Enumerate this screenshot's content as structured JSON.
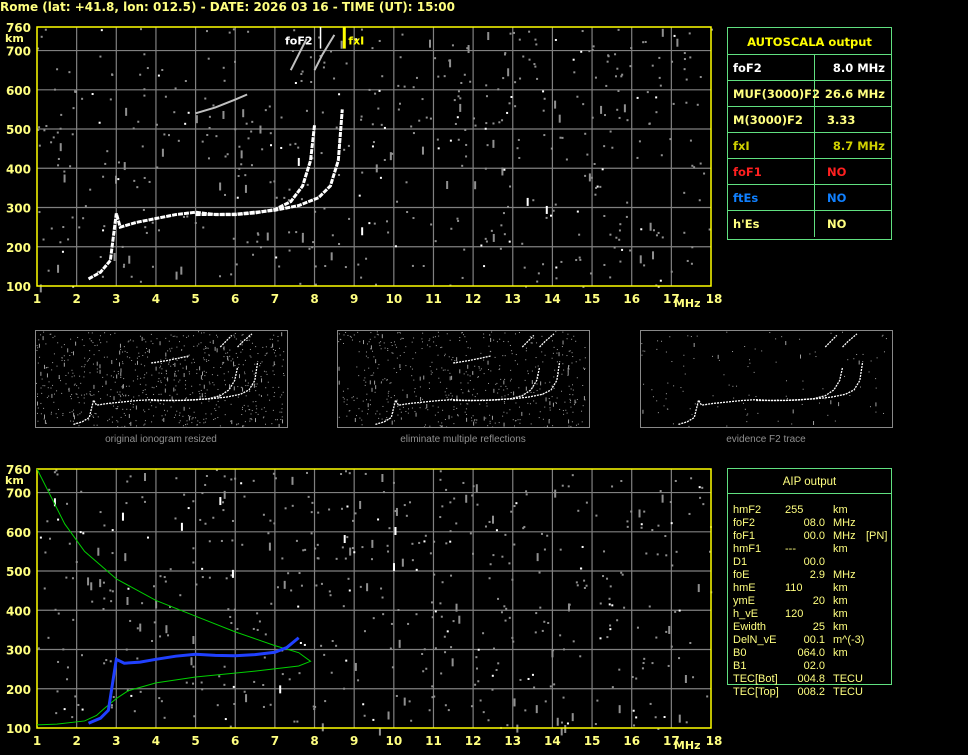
{
  "title": "Rome (lat: +41.8, lon: 012.5) - DATE: 2026 03 16 - TIME (UT): 15:00",
  "colors": {
    "axis": "#ffff00",
    "grid": "#808080",
    "table_border": "#60e080",
    "label": "#ffff80",
    "trace": "#ffffff",
    "profile": "#00d000",
    "aip_trace": "#2040ff",
    "fof1": "#ff2020",
    "ftes": "#1080ff",
    "fxl": "#d0d000"
  },
  "autoscala": {
    "header": "AUTOSCALA output",
    "rows": [
      {
        "label": "foF2",
        "value": "8.0 MHz",
        "color": "#ffffff"
      },
      {
        "label": "MUF(3000)F2",
        "value": "26.6 MHz",
        "color": "#ffff80"
      },
      {
        "label": "M(3000)F2",
        "value": "3.33",
        "color": "#ffff80"
      },
      {
        "label": "fxI",
        "value": "8.7 MHz",
        "color": "#d0d000"
      },
      {
        "label": "foF1",
        "value": "NO",
        "color": "#ff2020"
      },
      {
        "label": "ftEs",
        "value": "NO",
        "color": "#1080ff"
      },
      {
        "label": "h'Es",
        "value": "NO",
        "color": "#ffff80"
      }
    ]
  },
  "aip": {
    "header": "AIP output",
    "rows": [
      {
        "name": "hmF2",
        "value": "255",
        "unit": "km",
        "extra": ""
      },
      {
        "name": "foF2",
        "value": "08.0",
        "unit": "MHz",
        "extra": ""
      },
      {
        "name": "foF1",
        "value": "00.0",
        "unit": "MHz",
        "extra": "[PN]"
      },
      {
        "name": "hmF1",
        "value": "---",
        "unit": "km",
        "extra": ""
      },
      {
        "name": "D1",
        "value": "00.0",
        "unit": "",
        "extra": ""
      },
      {
        "name": "foE",
        "value": "2.9",
        "unit": "MHz",
        "extra": ""
      },
      {
        "name": "hmE",
        "value": "110",
        "unit": "km",
        "extra": ""
      },
      {
        "name": "ymE",
        "value": "20",
        "unit": "km",
        "extra": ""
      },
      {
        "name": "h_vE",
        "value": "120",
        "unit": "km",
        "extra": ""
      },
      {
        "name": "Ewidth",
        "value": "25",
        "unit": "km",
        "extra": ""
      },
      {
        "name": "DelN_vE",
        "value": "00.1",
        "unit": "m^(-3)",
        "extra": ""
      },
      {
        "name": "B0",
        "value": "064.0",
        "unit": "km",
        "extra": ""
      },
      {
        "name": "B1",
        "value": "02.0",
        "unit": "",
        "extra": ""
      },
      {
        "name": "TEC[Bot]",
        "value": "004.8",
        "unit": "TECU",
        "extra": ""
      },
      {
        "name": "TEC[Top]",
        "value": "008.2",
        "unit": "TECU",
        "extra": ""
      }
    ]
  },
  "thumbnails": [
    {
      "caption": "original ionogram resized"
    },
    {
      "caption": "eliminate multiple reflections"
    },
    {
      "caption": "evidence F2 trace"
    }
  ],
  "chart_data": [
    {
      "type": "scatter",
      "xlabel": "MHz",
      "ylabel": "km",
      "xlim": [
        1,
        18
      ],
      "ylim": [
        100,
        760
      ],
      "xticks": [
        "1",
        "2",
        "3",
        "4",
        "5",
        "6",
        "7",
        "8",
        "9",
        "10",
        "11",
        "12",
        "13",
        "14",
        "15",
        "16",
        "17",
        "18"
      ],
      "yticks": [
        "760",
        "700",
        "600",
        "500",
        "400",
        "300",
        "200",
        "100"
      ],
      "grid": true,
      "markers": [
        {
          "label": "foF2",
          "x": 8.0
        },
        {
          "label": "fxI",
          "x": 8.7
        }
      ],
      "series": [
        {
          "kind": "o-trace",
          "points": [
            [
              2.3,
              118
            ],
            [
              2.6,
              135
            ],
            [
              2.85,
              165
            ],
            [
              3.0,
              285
            ],
            [
              3.1,
              250
            ],
            [
              3.5,
              262
            ],
            [
              4,
              272
            ],
            [
              4.5,
              282
            ],
            [
              5,
              288
            ],
            [
              5.5,
              282
            ],
            [
              6,
              282
            ],
            [
              6.5,
              286
            ],
            [
              7,
              295
            ],
            [
              7.4,
              315
            ],
            [
              7.7,
              355
            ],
            [
              7.9,
              420
            ],
            [
              8.0,
              510
            ]
          ]
        },
        {
          "kind": "x-trace",
          "points": [
            [
              5,
              282
            ],
            [
              6,
              283
            ],
            [
              7,
              293
            ],
            [
              7.6,
              305
            ],
            [
              8.1,
              325
            ],
            [
              8.4,
              355
            ],
            [
              8.6,
              420
            ],
            [
              8.7,
              550
            ]
          ]
        },
        {
          "kind": "multiple-echo",
          "points": [
            [
              5.0,
              540
            ],
            [
              5.5,
              555
            ],
            [
              6.0,
              575
            ],
            [
              6.3,
              588
            ]
          ]
        },
        {
          "kind": "multiple-echo",
          "points": [
            [
              7.4,
              650
            ],
            [
              7.6,
              690
            ],
            [
              7.8,
              730
            ]
          ]
        },
        {
          "kind": "multiple-echo",
          "points": [
            [
              8.0,
              650
            ],
            [
              8.2,
              690
            ],
            [
              8.5,
              740
            ]
          ]
        }
      ]
    },
    {
      "type": "line",
      "xlabel": "MHz",
      "ylabel": "km",
      "xlim": [
        1,
        18
      ],
      "ylim": [
        100,
        760
      ],
      "xticks": [
        "1",
        "2",
        "3",
        "4",
        "5",
        "6",
        "7",
        "8",
        "9",
        "10",
        "11",
        "12",
        "13",
        "14",
        "15",
        "16",
        "17",
        "18"
      ],
      "yticks": [
        "760",
        "700",
        "600",
        "500",
        "400",
        "300",
        "200",
        "100"
      ],
      "grid": true,
      "series": [
        {
          "kind": "profile",
          "points": [
            [
              1,
              760
            ],
            [
              1.3,
              700
            ],
            [
              1.7,
              620
            ],
            [
              2.2,
              550
            ],
            [
              3,
              480
            ],
            [
              4,
              425
            ],
            [
              5,
              385
            ],
            [
              6,
              345
            ],
            [
              7,
              310
            ],
            [
              7.6,
              292
            ],
            [
              7.9,
              270
            ],
            [
              7.6,
              258
            ],
            [
              6.5,
              245
            ],
            [
              5,
              230
            ],
            [
              4,
              215
            ],
            [
              3.3,
              195
            ],
            [
              3,
              175
            ],
            [
              2.7,
              150
            ],
            [
              2.5,
              132
            ],
            [
              2.2,
              118
            ],
            [
              1.5,
              110
            ],
            [
              1,
              108
            ]
          ]
        },
        {
          "kind": "aip-trace",
          "points": [
            [
              2.3,
              112
            ],
            [
              2.6,
              125
            ],
            [
              2.8,
              145
            ],
            [
              3.0,
              275
            ],
            [
              3.2,
              265
            ],
            [
              3.6,
              268
            ],
            [
              4,
              275
            ],
            [
              4.5,
              283
            ],
            [
              5,
              288
            ],
            [
              5.5,
              285
            ],
            [
              6,
              284
            ],
            [
              6.5,
              287
            ],
            [
              7,
              293
            ],
            [
              7.3,
              305
            ],
            [
              7.6,
              330
            ]
          ]
        }
      ]
    }
  ]
}
